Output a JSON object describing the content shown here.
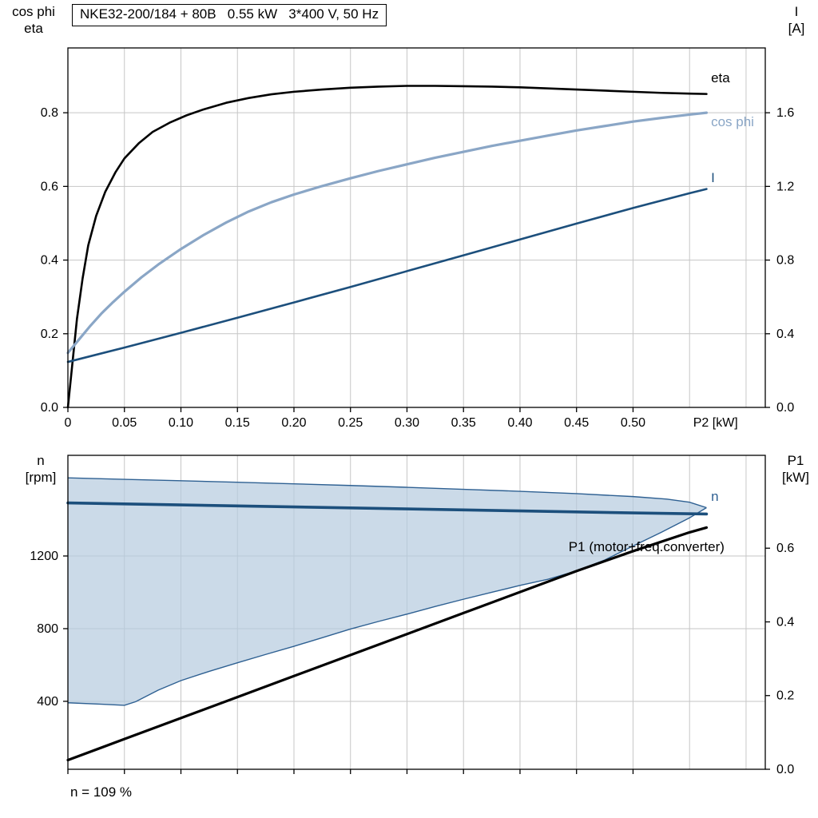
{
  "title_box": "NKE32-200/184 + 80B   0.55 kW   3*400 V, 50 Hz",
  "footnote": "n = 109 %",
  "axis_headers": {
    "upper_left_line1": "cos phi",
    "upper_left_line2": "eta",
    "upper_right_line1": "I",
    "upper_right_line2": "[A]",
    "lower_left_line1": "n",
    "lower_left_line2": "[rpm]",
    "lower_right_line1": "P1",
    "lower_right_line2": "[kW]"
  },
  "colors": {
    "grid": "#c6c6c6",
    "frame": "#000000",
    "eta": "#000000",
    "cos_phi": "#8aa6c6",
    "current": "#1c4f7c",
    "speed": "#1c4f7c",
    "envelope_fill": "#b5cade",
    "envelope_line": "#2e6092",
    "p1": "#000000"
  },
  "chart_data": [
    {
      "type": "line",
      "title": "NKE32-200/184 + 80B   0.55 kW   3*400 V, 50 Hz",
      "x_axis": {
        "label": "P2 [kW]",
        "title_x": 0.573,
        "range": [
          0,
          0.617
        ],
        "ticks": [
          0,
          0.05,
          0.1,
          0.15,
          0.2,
          0.25,
          0.3,
          0.35,
          0.4,
          0.45,
          0.5
        ],
        "tick_labels": [
          "0",
          "0.05",
          "0.10",
          "0.15",
          "0.20",
          "0.25",
          "0.30",
          "0.35",
          "0.40",
          "0.45",
          "0.50"
        ],
        "grid_values": [
          0.05,
          0.1,
          0.15,
          0.2,
          0.25,
          0.3,
          0.35,
          0.4,
          0.45,
          0.5,
          0.55,
          0.6
        ]
      },
      "left_axis": {
        "label": "cos phi / eta",
        "range": [
          0,
          0.976
        ],
        "ticks": [
          0,
          0.2,
          0.4,
          0.6,
          0.8
        ],
        "tick_labels": [
          "0.0",
          "0.2",
          "0.4",
          "0.6",
          "0.8"
        ]
      },
      "right_axis": {
        "label": "I [A]",
        "range": [
          0,
          1.952
        ],
        "ticks": [
          0,
          0.4,
          0.8,
          1.2,
          1.6
        ],
        "tick_labels": [
          "0.0",
          "0.4",
          "0.8",
          "1.2",
          "1.6"
        ]
      },
      "series": [
        {
          "name": "eta",
          "axis": "left",
          "color": "#000000",
          "width": 2.6,
          "points": [
            [
              0,
              0
            ],
            [
              0.004,
              0.12
            ],
            [
              0.008,
              0.24
            ],
            [
              0.013,
              0.35
            ],
            [
              0.018,
              0.44
            ],
            [
              0.025,
              0.52
            ],
            [
              0.033,
              0.585
            ],
            [
              0.042,
              0.638
            ],
            [
              0.05,
              0.676
            ],
            [
              0.063,
              0.718
            ],
            [
              0.075,
              0.748
            ],
            [
              0.09,
              0.773
            ],
            [
              0.105,
              0.793
            ],
            [
              0.12,
              0.809
            ],
            [
              0.14,
              0.827
            ],
            [
              0.16,
              0.84
            ],
            [
              0.18,
              0.85
            ],
            [
              0.2,
              0.857
            ],
            [
              0.225,
              0.863
            ],
            [
              0.25,
              0.868
            ],
            [
              0.275,
              0.871
            ],
            [
              0.3,
              0.873
            ],
            [
              0.325,
              0.873
            ],
            [
              0.35,
              0.872
            ],
            [
              0.375,
              0.871
            ],
            [
              0.4,
              0.869
            ],
            [
              0.425,
              0.866
            ],
            [
              0.45,
              0.863
            ],
            [
              0.475,
              0.86
            ],
            [
              0.5,
              0.857
            ],
            [
              0.525,
              0.854
            ],
            [
              0.55,
              0.852
            ],
            [
              0.565,
              0.851
            ]
          ]
        },
        {
          "name": "cos phi",
          "axis": "left",
          "color": "#8aa6c6",
          "width": 3.2,
          "points": [
            [
              0,
              0.148
            ],
            [
              0.01,
              0.185
            ],
            [
              0.02,
              0.222
            ],
            [
              0.03,
              0.256
            ],
            [
              0.04,
              0.286
            ],
            [
              0.05,
              0.314
            ],
            [
              0.065,
              0.353
            ],
            [
              0.08,
              0.388
            ],
            [
              0.1,
              0.43
            ],
            [
              0.12,
              0.468
            ],
            [
              0.14,
              0.502
            ],
            [
              0.16,
              0.532
            ],
            [
              0.18,
              0.557
            ],
            [
              0.2,
              0.578
            ],
            [
              0.225,
              0.601
            ],
            [
              0.25,
              0.622
            ],
            [
              0.275,
              0.642
            ],
            [
              0.3,
              0.66
            ],
            [
              0.325,
              0.678
            ],
            [
              0.35,
              0.694
            ],
            [
              0.375,
              0.71
            ],
            [
              0.4,
              0.724
            ],
            [
              0.425,
              0.738
            ],
            [
              0.45,
              0.752
            ],
            [
              0.475,
              0.764
            ],
            [
              0.5,
              0.776
            ],
            [
              0.525,
              0.786
            ],
            [
              0.55,
              0.795
            ],
            [
              0.565,
              0.8
            ]
          ]
        },
        {
          "name": "I",
          "axis": "right",
          "color": "#1c4f7c",
          "width": 2.6,
          "points": [
            [
              0,
              0.247
            ],
            [
              0.05,
              0.325
            ],
            [
              0.1,
              0.405
            ],
            [
              0.15,
              0.487
            ],
            [
              0.2,
              0.57
            ],
            [
              0.25,
              0.654
            ],
            [
              0.3,
              0.74
            ],
            [
              0.35,
              0.826
            ],
            [
              0.4,
              0.912
            ],
            [
              0.45,
              0.998
            ],
            [
              0.5,
              1.083
            ],
            [
              0.55,
              1.163
            ],
            [
              0.565,
              1.186
            ]
          ]
        }
      ],
      "curve_labels": [
        {
          "text": "eta",
          "x": 0.569,
          "y": 0.896,
          "axis": "left",
          "color": "#000000"
        },
        {
          "text": "cos phi",
          "x": 0.569,
          "y": 0.776,
          "axis": "left",
          "color": "#8aa6c6"
        },
        {
          "text": "I",
          "x": 0.569,
          "y": 0.625,
          "axis": "left",
          "color": "#1c4f7c"
        }
      ]
    },
    {
      "type": "line",
      "title": "Speed and input power",
      "x_axis": {
        "label": "",
        "range": [
          0,
          0.617
        ],
        "ticks": [
          0,
          0.05,
          0.1,
          0.15,
          0.2,
          0.25,
          0.3,
          0.35,
          0.4,
          0.45,
          0.5
        ],
        "tick_labels": [],
        "grid_values": [
          0.05,
          0.1,
          0.15,
          0.2,
          0.25,
          0.3,
          0.35,
          0.4,
          0.45,
          0.5,
          0.55,
          0.6
        ]
      },
      "left_axis": {
        "label": "n [rpm]",
        "range": [
          26,
          1754
        ],
        "ticks": [
          400,
          800,
          1200
        ],
        "tick_labels": [
          "400",
          "800",
          "1200"
        ]
      },
      "right_axis": {
        "label": "P1 [kW]",
        "range": [
          0,
          0.852
        ],
        "ticks": [
          0,
          0.2,
          0.4,
          0.6
        ],
        "tick_labels": [
          "0.0",
          "0.2",
          "0.4",
          "0.6"
        ]
      },
      "areas": [
        {
          "name": "speed-range",
          "axis": "left",
          "upper": [
            [
              0,
              1630
            ],
            [
              0.05,
              1622
            ],
            [
              0.1,
              1614
            ],
            [
              0.15,
              1606
            ],
            [
              0.2,
              1597
            ],
            [
              0.25,
              1588
            ],
            [
              0.3,
              1578
            ],
            [
              0.35,
              1567
            ],
            [
              0.4,
              1556
            ],
            [
              0.45,
              1543
            ],
            [
              0.5,
              1527
            ],
            [
              0.53,
              1513
            ],
            [
              0.55,
              1496
            ],
            [
              0.565,
              1466
            ]
          ],
          "lower": [
            [
              0,
              392
            ],
            [
              0.03,
              384
            ],
            [
              0.05,
              378
            ],
            [
              0.06,
              398
            ],
            [
              0.08,
              462
            ],
            [
              0.1,
              514
            ],
            [
              0.125,
              565
            ],
            [
              0.15,
              612
            ],
            [
              0.175,
              658
            ],
            [
              0.2,
              703
            ],
            [
              0.225,
              750
            ],
            [
              0.25,
              798
            ],
            [
              0.275,
              840
            ],
            [
              0.3,
              880
            ],
            [
              0.325,
              922
            ],
            [
              0.35,
              962
            ],
            [
              0.375,
              1000
            ],
            [
              0.4,
              1038
            ],
            [
              0.425,
              1072
            ],
            [
              0.45,
              1118
            ],
            [
              0.475,
              1178
            ],
            [
              0.5,
              1255
            ],
            [
              0.525,
              1330
            ],
            [
              0.55,
              1410
            ],
            [
              0.565,
              1466
            ]
          ]
        }
      ],
      "series": [
        {
          "name": "n",
          "axis": "left",
          "color": "#1c4f7c",
          "width": 3.6,
          "points": [
            [
              0,
              1492
            ],
            [
              0.1,
              1481
            ],
            [
              0.2,
              1470
            ],
            [
              0.3,
              1459
            ],
            [
              0.4,
              1448
            ],
            [
              0.5,
              1437
            ],
            [
              0.565,
              1431
            ]
          ]
        },
        {
          "name": "P1 (motor+freq.converter)",
          "axis": "right",
          "color": "#000000",
          "width": 3.2,
          "points": [
            [
              0,
              0.025
            ],
            [
              0.05,
              0.082
            ],
            [
              0.1,
              0.139
            ],
            [
              0.15,
              0.196
            ],
            [
              0.2,
              0.253
            ],
            [
              0.25,
              0.31
            ],
            [
              0.3,
              0.367
            ],
            [
              0.35,
              0.424
            ],
            [
              0.4,
              0.481
            ],
            [
              0.45,
              0.538
            ],
            [
              0.5,
              0.592
            ],
            [
              0.55,
              0.643
            ],
            [
              0.565,
              0.656
            ]
          ]
        }
      ],
      "curve_labels": [
        {
          "text": "n",
          "x": 0.569,
          "y": 1530,
          "axis": "left",
          "color": "#2e6092"
        },
        {
          "text": "P1 (motor+freq.converter)",
          "x": 0.443,
          "y": 0.605,
          "axis": "right",
          "color": "#000000"
        }
      ]
    }
  ]
}
